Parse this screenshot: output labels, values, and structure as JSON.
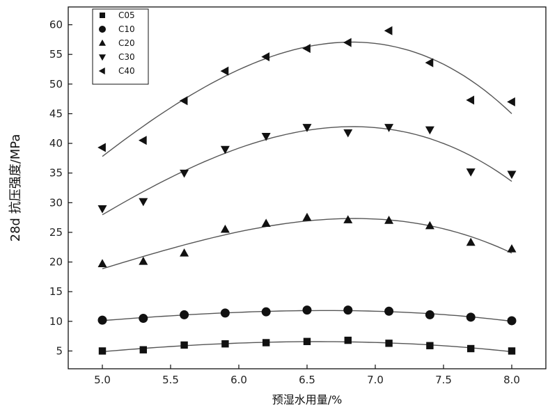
{
  "chart_data": {
    "type": "scatter",
    "title": "",
    "xlabel": "预湿水用量/%",
    "ylabel": "28d 抗压强度/MPa",
    "xlim": [
      4.75,
      8.25
    ],
    "ylim": [
      2,
      63
    ],
    "xticks": [
      "5.0",
      "5.5",
      "6.0",
      "6.5",
      "7.0",
      "7.5",
      "8.0"
    ],
    "yticks": [
      "5",
      "10",
      "15",
      "20",
      "25",
      "30",
      "35",
      "40",
      "45",
      "50",
      "55",
      "60"
    ],
    "x": [
      5.0,
      5.3,
      5.6,
      5.9,
      6.2,
      6.5,
      6.8,
      7.1,
      7.4,
      7.7,
      8.0
    ],
    "legend_position": "top-left",
    "grid": false,
    "marker_color": "#111111",
    "fit_color": "#555555",
    "series": [
      {
        "name": "C05",
        "marker": "square",
        "values": [
          5.0,
          5.2,
          6.0,
          6.2,
          6.4,
          6.6,
          6.8,
          6.3,
          5.9,
          5.4,
          5.0
        ]
      },
      {
        "name": "C10",
        "marker": "circle",
        "values": [
          10.2,
          10.5,
          11.1,
          11.4,
          11.6,
          11.9,
          11.9,
          11.7,
          11.1,
          10.7,
          10.1
        ]
      },
      {
        "name": "C20",
        "marker": "triangle-up",
        "values": [
          19.7,
          20.1,
          21.5,
          25.5,
          26.5,
          27.5,
          27.1,
          27.0,
          26.1,
          23.3,
          22.2
        ]
      },
      {
        "name": "C30",
        "marker": "triangle-down",
        "values": [
          29.0,
          30.2,
          35.0,
          39.0,
          41.2,
          42.7,
          41.8,
          42.7,
          42.3,
          35.2,
          34.8
        ]
      },
      {
        "name": "C40",
        "marker": "triangle-left",
        "values": [
          39.3,
          40.5,
          47.2,
          52.2,
          54.6,
          56.0,
          57.0,
          59.0,
          53.6,
          47.3,
          47.0
        ]
      }
    ]
  }
}
